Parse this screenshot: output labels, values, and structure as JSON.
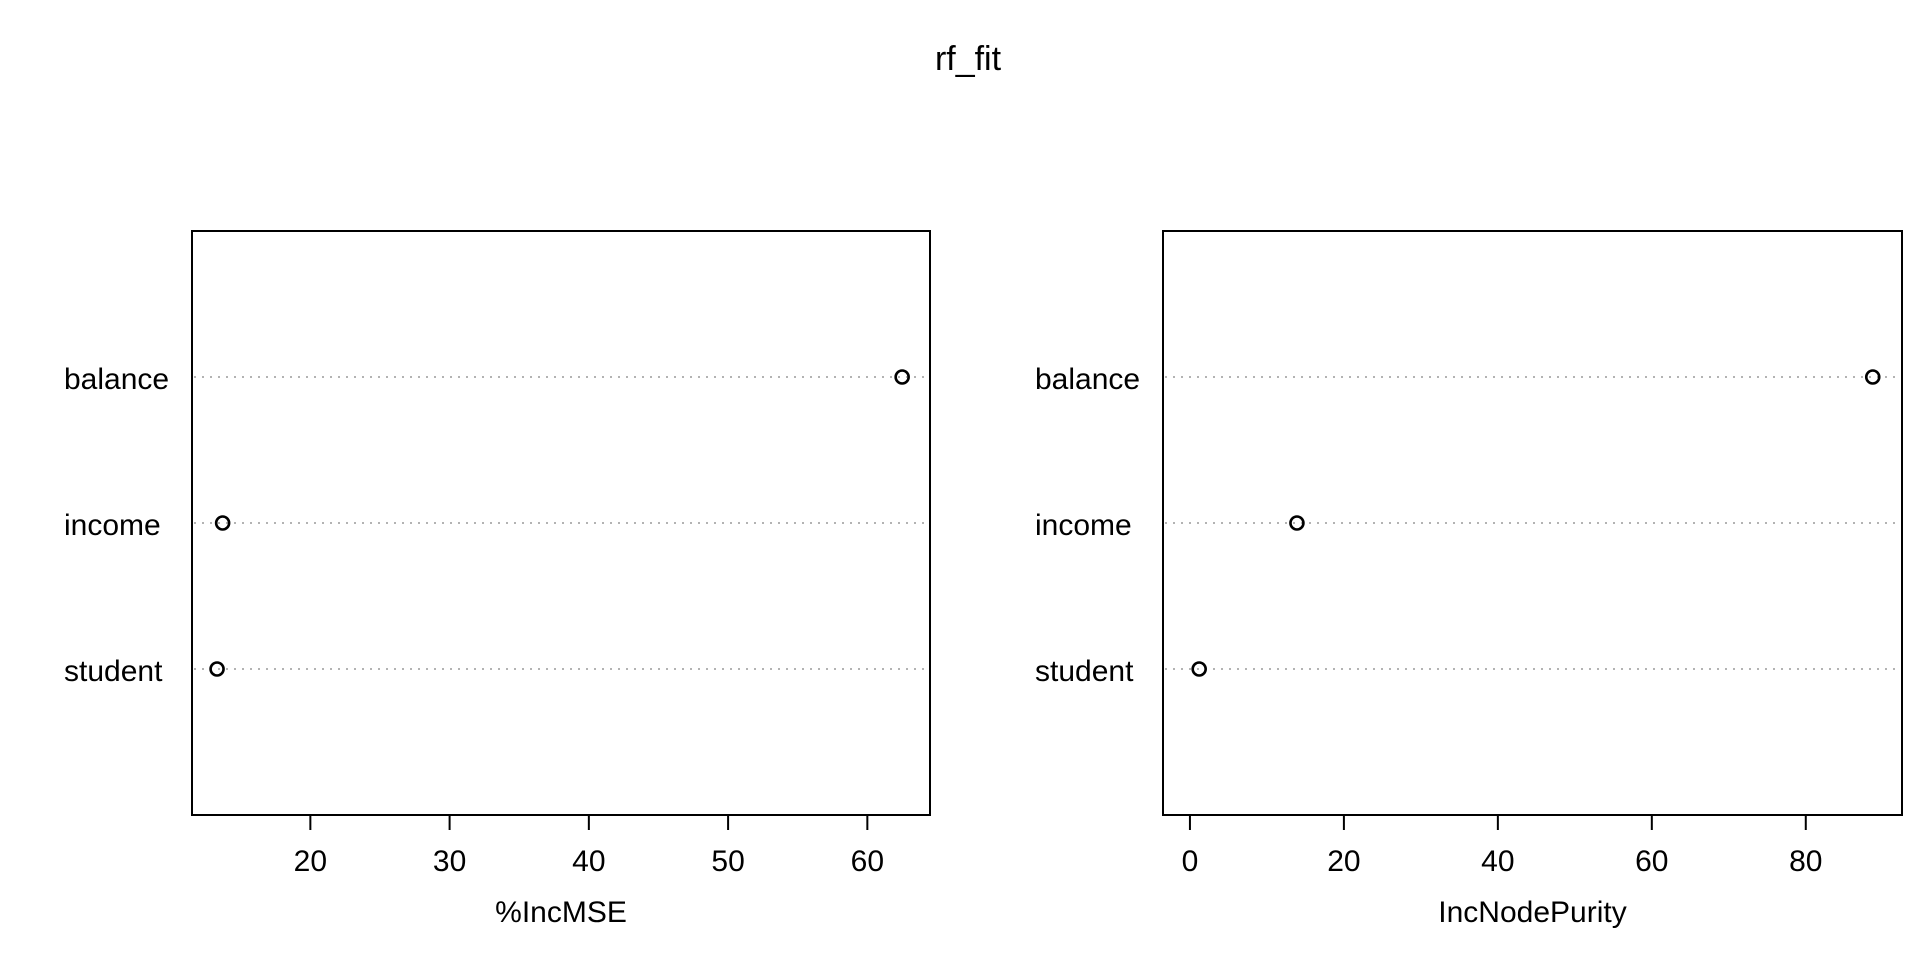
{
  "title": "rf_fit",
  "chart_data": [
    {
      "type": "dotchart",
      "xlabel": "%IncMSE",
      "ylabel": "",
      "xlim": [
        11.5,
        64.5
      ],
      "xticks": [
        20,
        30,
        40,
        50,
        60
      ],
      "grid": "horizontal dotted",
      "categories": [
        "student",
        "income",
        "balance"
      ],
      "values": [
        13.3,
        13.7,
        62.5
      ]
    },
    {
      "type": "dotchart",
      "xlabel": "IncNodePurity",
      "ylabel": "",
      "xlim": [
        -3.5,
        92.5
      ],
      "xticks": [
        0,
        20,
        40,
        60,
        80
      ],
      "grid": "horizontal dotted",
      "categories": [
        "student",
        "income",
        "balance"
      ],
      "values": [
        1.2,
        13.9,
        88.7
      ]
    }
  ]
}
